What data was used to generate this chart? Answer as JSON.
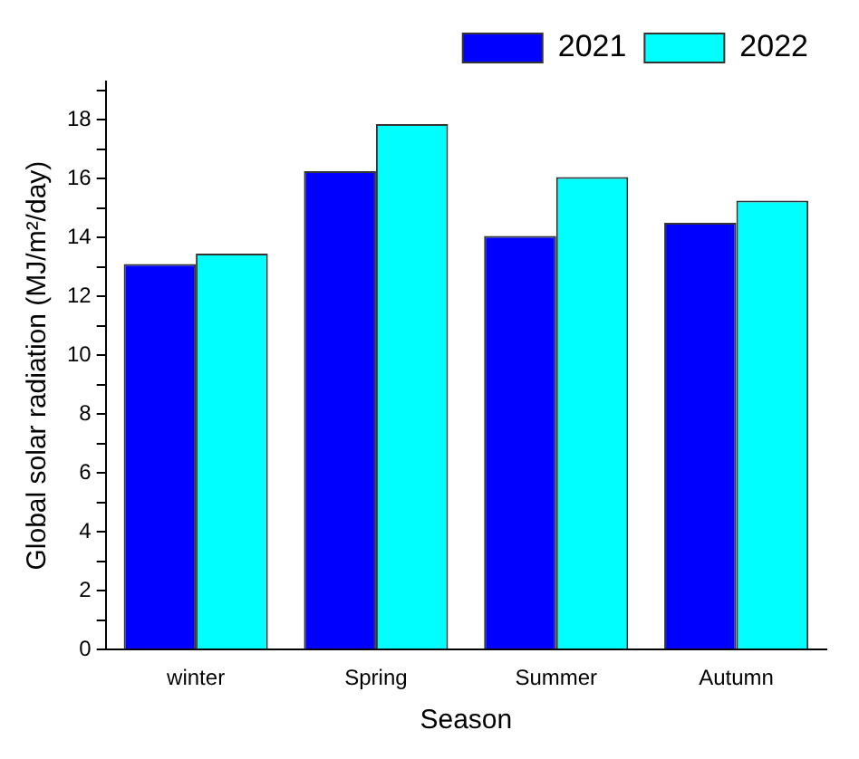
{
  "chart_data": {
    "type": "bar",
    "xlabel": "Season",
    "ylabel": "Global solar radiation (MJ/m²/day)",
    "categories": [
      "winter",
      "Spring",
      "Summer",
      "Autumn"
    ],
    "series": [
      {
        "name": "2021",
        "color": "#0000ff",
        "values": [
          13.1,
          16.25,
          14.05,
          14.5
        ]
      },
      {
        "name": "2022",
        "color": "#00ffff",
        "values": [
          13.45,
          17.85,
          16.05,
          15.25
        ]
      }
    ],
    "ylim": [
      0,
      19.3
    ],
    "yticks": [
      0,
      {
        "value": 1,
        "label": null
      },
      2,
      {
        "value": 3,
        "label": null
      },
      4,
      {
        "value": 5,
        "label": null
      },
      6,
      {
        "value": 7,
        "label": null
      },
      8,
      {
        "value": 9,
        "label": null
      },
      10,
      {
        "value": 11,
        "label": null
      },
      12,
      {
        "value": 13,
        "label": null
      },
      14,
      {
        "value": 15,
        "label": null
      },
      16,
      {
        "value": 17,
        "label": null
      },
      18,
      {
        "value": 19,
        "label": null
      }
    ],
    "grid": false,
    "legend": "top right"
  }
}
